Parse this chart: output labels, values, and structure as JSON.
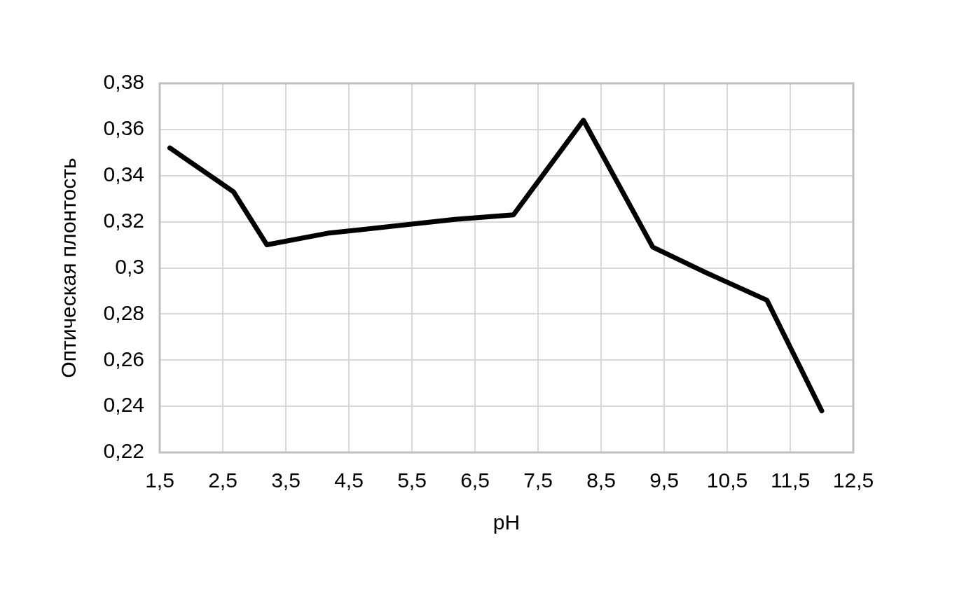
{
  "chart_data": {
    "type": "line",
    "xlabel": "pH",
    "ylabel": "Оптическая плонтость",
    "x": [
      1.66,
      2.67,
      3.2,
      4.16,
      6.18,
      7.11,
      8.22,
      9.32,
      10.16,
      11.13,
      12.0
    ],
    "series": [
      {
        "color": "#000000",
        "values": [
          0.352,
          0.333,
          0.31,
          0.315,
          0.321,
          0.323,
          0.364,
          0.309,
          0.298,
          0.286,
          0.238
        ]
      }
    ],
    "xlim": [
      1.5,
      12.5
    ],
    "xticks": [
      {
        "value": 1.5,
        "label": "1,5"
      },
      {
        "value": 2.5,
        "label": "2,5"
      },
      {
        "value": 3.5,
        "label": "3,5"
      },
      {
        "value": 4.5,
        "label": "4,5"
      },
      {
        "value": 5.5,
        "label": "5,5"
      },
      {
        "value": 6.5,
        "label": "6,5"
      },
      {
        "value": 7.5,
        "label": "7,5"
      },
      {
        "value": 8.5,
        "label": "8,5"
      },
      {
        "value": 9.5,
        "label": "9,5"
      },
      {
        "value": 10.5,
        "label": "10,5"
      },
      {
        "value": 11.5,
        "label": "11,5"
      },
      {
        "value": 12.5,
        "label": "12,5"
      }
    ],
    "ylim": [
      0.22,
      0.38
    ],
    "yticks": [
      {
        "value": 0.22,
        "label": "0,22"
      },
      {
        "value": 0.24,
        "label": "0,24"
      },
      {
        "value": 0.26,
        "label": "0,26"
      },
      {
        "value": 0.28,
        "label": "0,28"
      },
      {
        "value": 0.3,
        "label": "0,3"
      },
      {
        "value": 0.32,
        "label": "0,32"
      },
      {
        "value": 0.34,
        "label": "0,34"
      },
      {
        "value": 0.36,
        "label": "0,36"
      },
      {
        "value": 0.38,
        "label": "0,38"
      }
    ],
    "grid": true
  }
}
